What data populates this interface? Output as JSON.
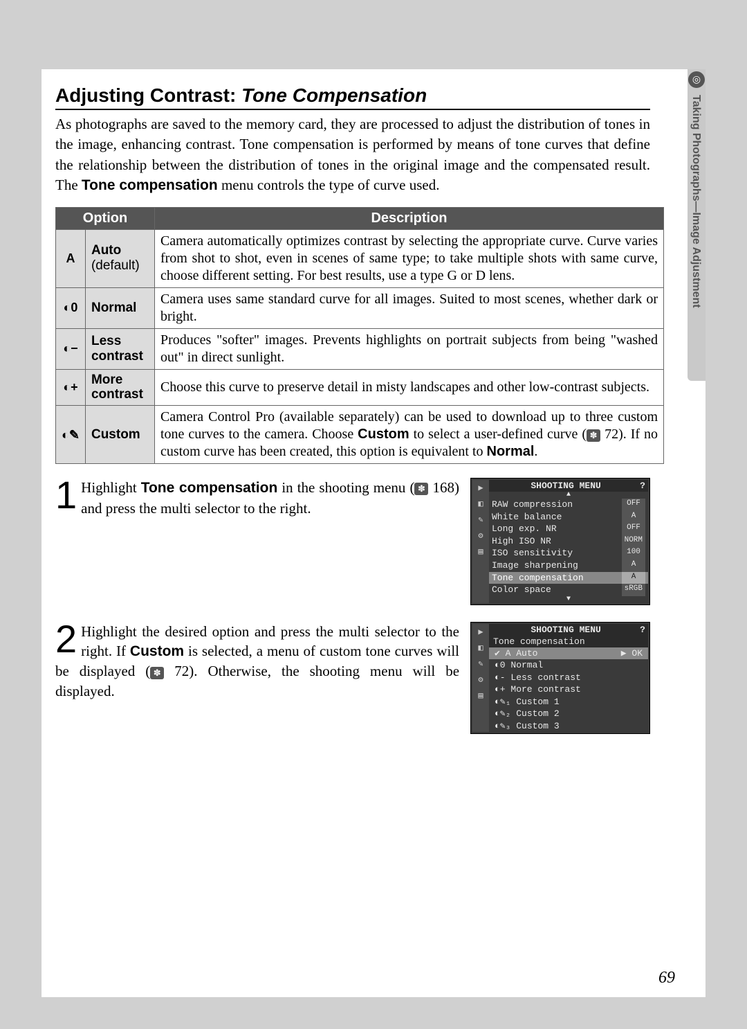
{
  "pageNumber": "69",
  "sideTab": {
    "icon": "◎",
    "text": "Taking Photographs—Image Adjustment"
  },
  "heading": {
    "prefix": "Adjusting Contrast: ",
    "italic": "Tone Compensation"
  },
  "intro": {
    "p1a": "As photographs are saved to the memory card, they are processed to adjust the distribution of tones in the image, enhancing contrast. Tone compensation is performed by means of tone curves that define the relationship between the distribution of tones in the original image and the compensated result. The ",
    "bold": "Tone compensation",
    "p1b": " menu controls the type of curve used."
  },
  "table": {
    "headers": {
      "option": "Option",
      "description": "Description"
    },
    "rows": [
      {
        "icon": "A",
        "label": "Auto",
        "sub": "(default)",
        "desc": "Camera automatically optimizes contrast by selecting the appropriate curve. Curve varies from shot to shot, even in scenes of same type; to take multiple shots with same curve, choose different setting. For best results, use a type G or D lens."
      },
      {
        "icon": "◐0",
        "label": "Normal",
        "sub": "",
        "desc": "Camera uses same standard curve for all images. Suited to most scenes, whether dark or bright."
      },
      {
        "icon": "◐−",
        "label": "Less contrast",
        "sub": "",
        "desc": "Produces \"softer\" images. Prevents highlights on portrait subjects from being \"washed out\" in direct sunlight."
      },
      {
        "icon": "◐+",
        "label": "More contrast",
        "sub": "",
        "desc": "Choose this curve to preserve detail in misty landscapes and other low-contrast subjects."
      },
      {
        "icon": "◐✎",
        "label": "Custom",
        "sub": "",
        "descParts": {
          "a": "Camera Control Pro (available separately) can be used to download up to three custom tone curves to the camera. Choose ",
          "b1": "Custom",
          "c": " to select a user-defined curve (",
          "ref": "72",
          "d": "). If no custom curve has been created, this option is equivalent to ",
          "b2": "Normal",
          "e": "."
        }
      }
    ]
  },
  "steps": {
    "s1": {
      "num": "1",
      "a": "Highlight ",
      "b": "Tone compensation",
      "c": " in the shooting menu (",
      "ref": "168",
      "d": ") and press the multi selector to the right."
    },
    "s2": {
      "num": "2",
      "a": "Highlight the desired option and press the multi selector to the right. If ",
      "b": "Custom",
      "c": " is selected, a menu of custom tone curves will be displayed (",
      "ref": "72",
      "d": "). Otherwise, the shooting menu will be displayed."
    }
  },
  "lcd": {
    "title": "SHOOTING MENU",
    "help": "?",
    "icons": [
      "▶",
      "◧",
      "✎",
      "⚙",
      "▤"
    ],
    "menu1": [
      {
        "name": "RAW compression",
        "val": "OFF"
      },
      {
        "name": "White balance",
        "val": "A"
      },
      {
        "name": "Long exp. NR",
        "val": "OFF"
      },
      {
        "name": "High ISO NR",
        "val": "NORM"
      },
      {
        "name": "ISO sensitivity",
        "val": "100"
      },
      {
        "name": "Image sharpening",
        "val": "A"
      },
      {
        "name": "Tone compensation",
        "val": "A",
        "hl": true
      },
      {
        "name": "Color space",
        "val": "sRGB"
      }
    ],
    "menu2": {
      "subtitle": "Tone compensation",
      "options": [
        {
          "sym": "✔ A",
          "name": "Auto",
          "sel": true,
          "ok": "▶ OK"
        },
        {
          "sym": "◐0",
          "name": "Normal"
        },
        {
          "sym": "◐-",
          "name": "Less contrast"
        },
        {
          "sym": "◐+",
          "name": "More contrast"
        },
        {
          "sym": "◐✎₁",
          "name": "Custom 1"
        },
        {
          "sym": "◐✎₂",
          "name": "Custom 2"
        },
        {
          "sym": "◐✎₃",
          "name": "Custom 3"
        }
      ]
    }
  }
}
